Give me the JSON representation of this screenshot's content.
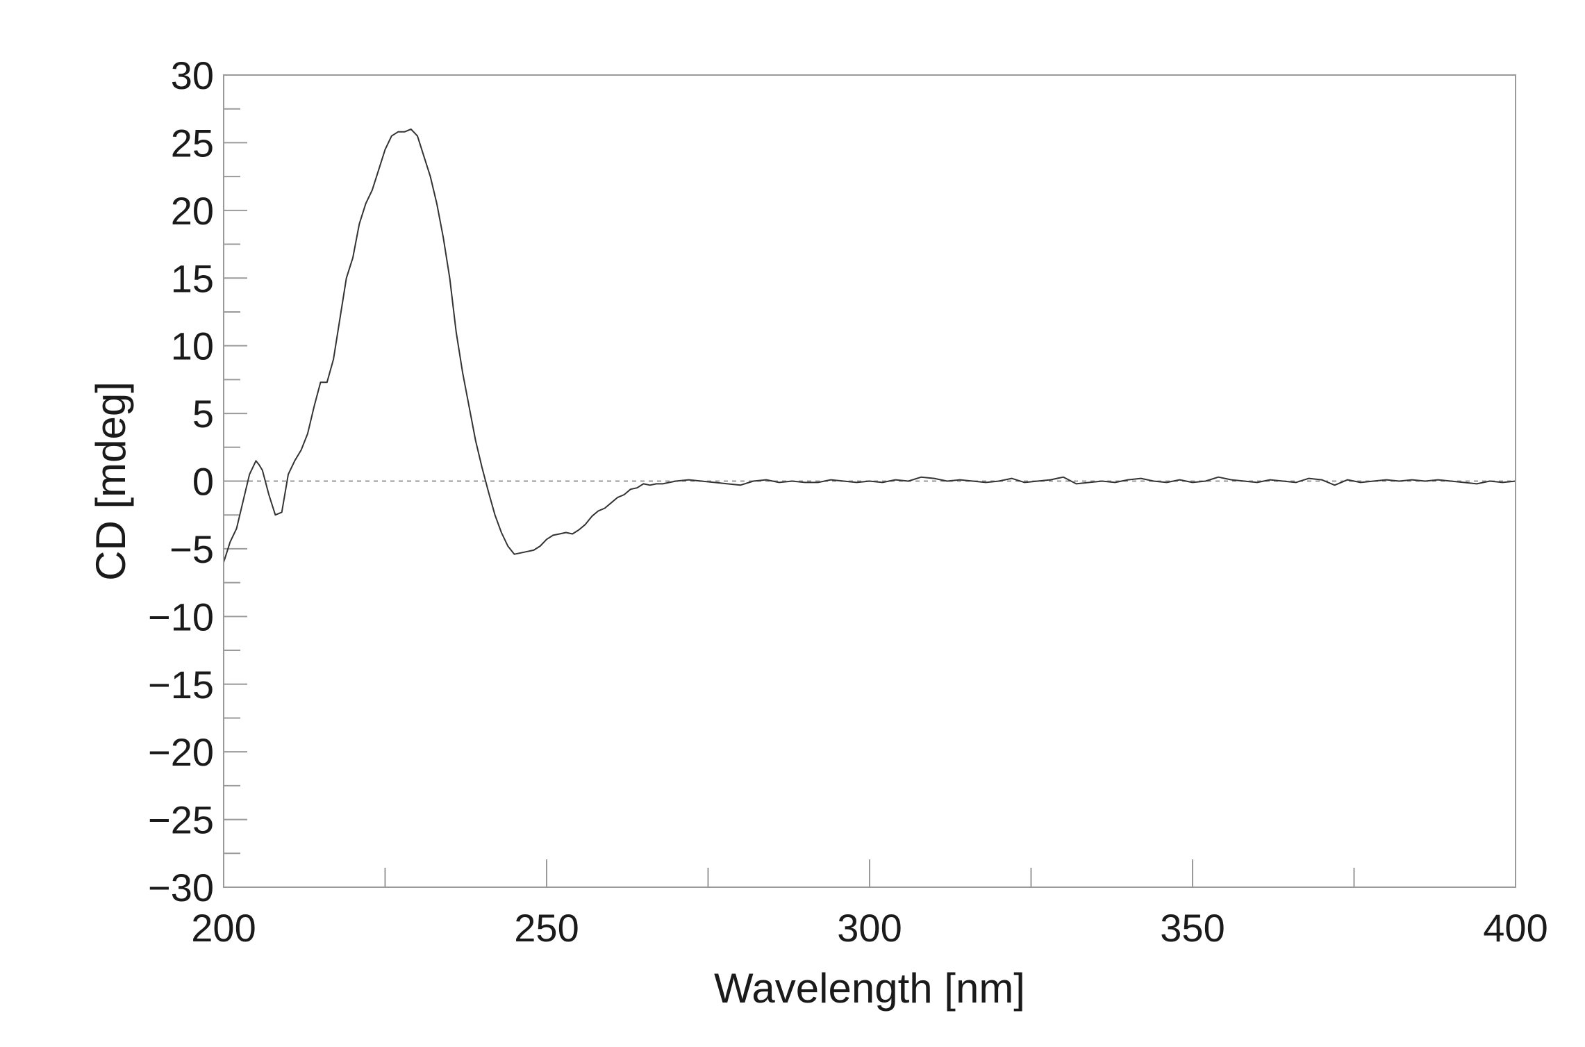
{
  "chart_data": {
    "type": "line",
    "title": "",
    "xlabel": "Wavelength [nm]",
    "ylabel": "CD [mdeg]",
    "xlim": [
      200,
      400
    ],
    "ylim": [
      -30,
      30
    ],
    "x_ticks": [
      200,
      250,
      300,
      350,
      400
    ],
    "x_tick_labels": [
      "200",
      "250",
      "300",
      "350",
      "400"
    ],
    "x_minor_step": 25,
    "y_ticks": [
      30,
      25,
      20,
      15,
      10,
      5,
      0,
      -5,
      -10,
      -15,
      -20,
      -25,
      -30
    ],
    "y_tick_labels": [
      "30",
      "25",
      "20",
      "15",
      "10",
      "5",
      "0",
      "−5",
      "−10",
      "−15",
      "−20",
      "−25",
      "−30"
    ],
    "y_minor_step": 2.5,
    "grid": false,
    "legend": "none",
    "reference_line": {
      "y": 0,
      "style": "dashed"
    },
    "colors": {
      "line": "#333333",
      "frame": "#9a9a9a"
    },
    "series": [
      {
        "x": [
          200,
          201,
          202,
          203,
          204,
          205,
          205.5,
          206,
          207,
          208,
          209,
          210,
          211,
          212,
          213,
          214,
          215,
          216,
          217,
          218,
          219,
          220,
          221,
          222,
          223,
          224,
          225,
          226,
          227,
          228,
          229,
          230,
          231,
          232,
          233,
          234,
          235,
          236,
          237,
          238,
          239,
          240,
          241,
          242,
          243,
          244,
          245,
          246,
          247,
          248,
          249,
          250,
          251,
          252,
          253,
          254,
          255,
          256,
          257,
          258,
          259,
          260,
          261,
          262,
          263,
          264,
          265,
          266,
          267,
          268,
          269,
          270,
          272,
          274,
          276,
          278,
          280,
          282,
          284,
          286,
          288,
          290,
          292,
          294,
          296,
          298,
          300,
          302,
          304,
          306,
          308,
          310,
          312,
          314,
          316,
          318,
          320,
          322,
          324,
          326,
          328,
          330,
          332,
          334,
          336,
          338,
          340,
          342,
          344,
          346,
          348,
          350,
          352,
          354,
          356,
          358,
          360,
          362,
          364,
          366,
          368,
          370,
          372,
          374,
          376,
          378,
          380,
          382,
          384,
          386,
          388,
          390,
          392,
          394,
          396,
          398,
          400
        ],
        "y": [
          -6.0,
          -4.5,
          -3.5,
          -1.5,
          0.5,
          1.5,
          1.2,
          0.8,
          -1.0,
          -2.5,
          -2.3,
          0.5,
          1.5,
          2.3,
          3.5,
          5.5,
          7.3,
          7.3,
          9.0,
          12.0,
          15.0,
          16.5,
          19.0,
          20.5,
          21.5,
          23.0,
          24.5,
          25.5,
          25.8,
          25.8,
          26.0,
          25.5,
          24.0,
          22.5,
          20.5,
          18.0,
          15.0,
          11.0,
          8.0,
          5.5,
          3.0,
          1.0,
          -0.8,
          -2.5,
          -3.8,
          -4.8,
          -5.4,
          -5.3,
          -5.2,
          -5.1,
          -4.8,
          -4.3,
          -4.0,
          -3.9,
          -3.8,
          -3.9,
          -3.6,
          -3.2,
          -2.6,
          -2.2,
          -2.0,
          -1.6,
          -1.2,
          -1.0,
          -0.6,
          -0.5,
          -0.2,
          -0.3,
          -0.2,
          -0.2,
          -0.1,
          0.0,
          0.1,
          0.0,
          -0.1,
          -0.2,
          -0.3,
          0.0,
          0.1,
          -0.1,
          0.0,
          -0.1,
          -0.1,
          0.1,
          0.0,
          -0.1,
          0.0,
          -0.1,
          0.1,
          0.0,
          0.3,
          0.2,
          0.0,
          0.1,
          0.0,
          -0.1,
          0.0,
          0.2,
          -0.1,
          0.0,
          0.1,
          0.3,
          -0.2,
          -0.1,
          0.0,
          -0.1,
          0.1,
          0.2,
          0.0,
          -0.1,
          0.1,
          -0.1,
          0.0,
          0.3,
          0.1,
          0.0,
          -0.1,
          0.1,
          0.0,
          -0.1,
          0.2,
          0.1,
          -0.3,
          0.1,
          -0.1,
          0.0,
          0.1,
          0.0,
          0.1,
          0.0,
          0.1,
          0.0,
          -0.1,
          -0.2,
          0.0,
          -0.1,
          0.0
        ]
      }
    ]
  }
}
